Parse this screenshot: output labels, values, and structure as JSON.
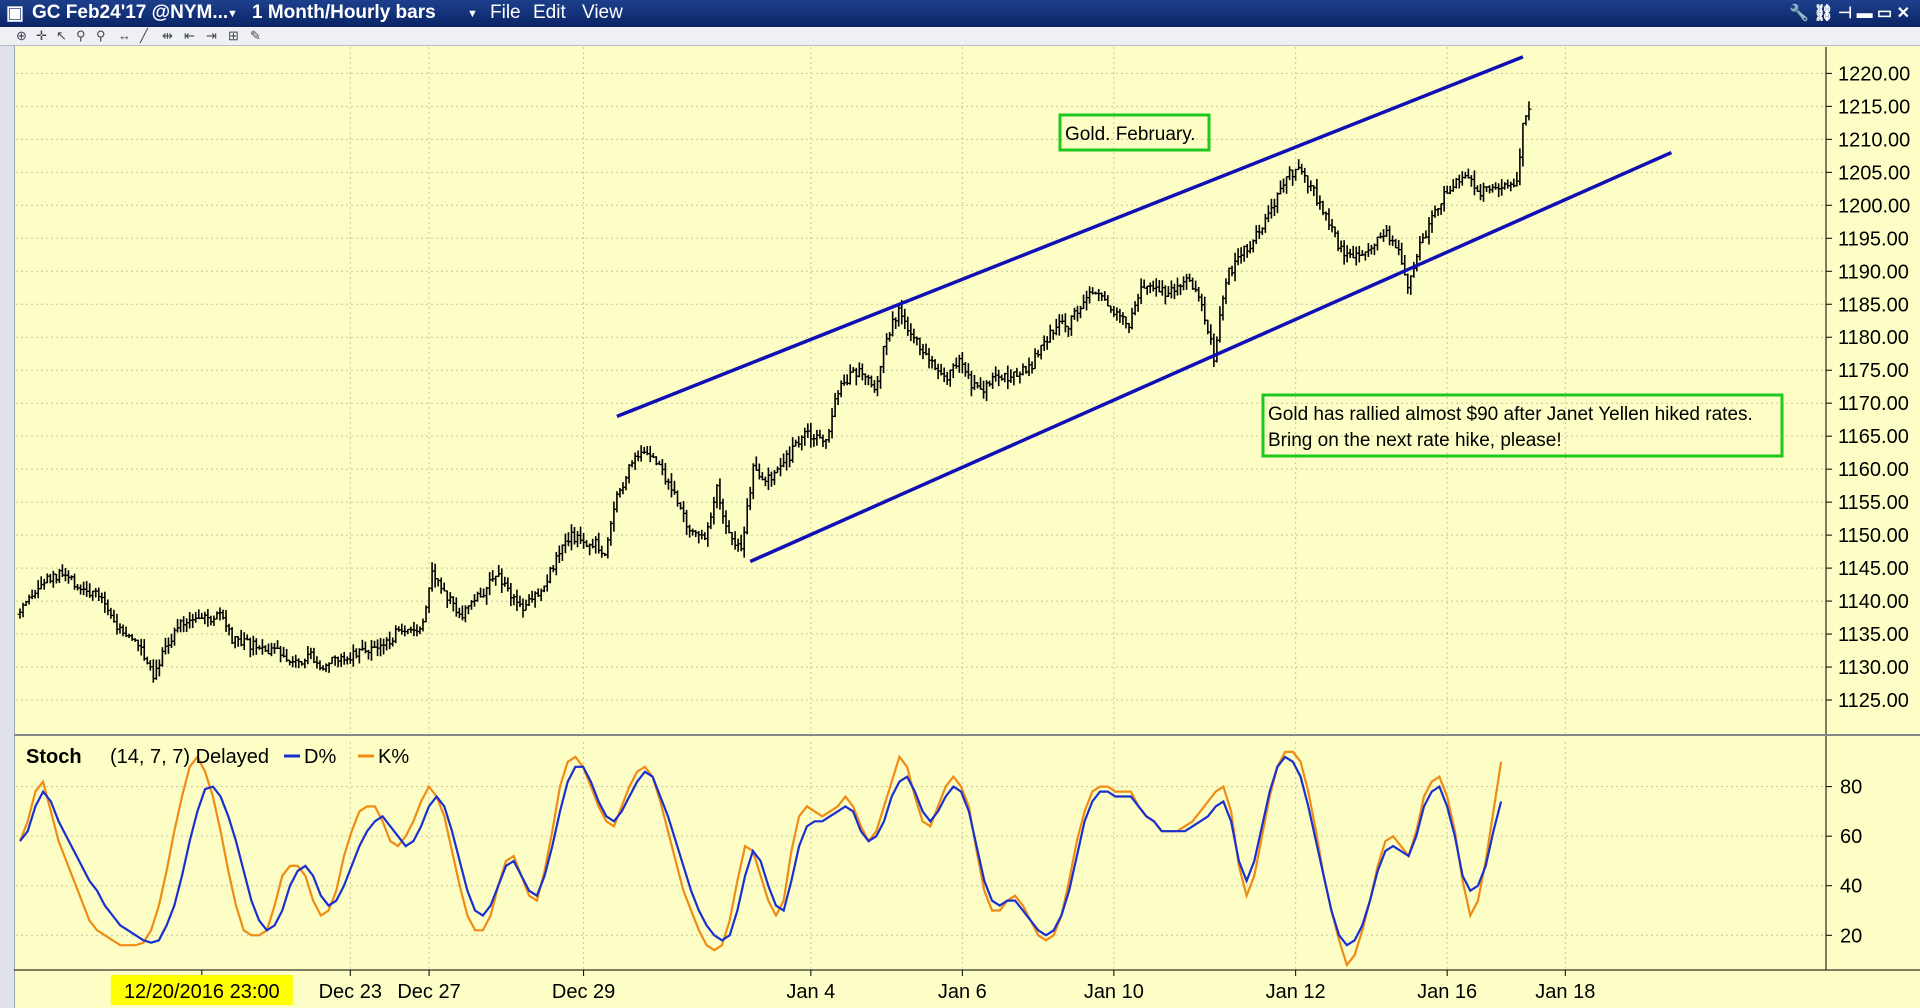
{
  "titlebar": {
    "symbol": "GC Feb24'17 @NYM...",
    "period": "1 Month/Hourly bars",
    "menu_file": "File",
    "menu_edit": "Edit",
    "menu_view": "View"
  },
  "colors": {
    "background": "#fdfdc6",
    "titlebar": "#123078",
    "channel": "#1010b4",
    "d_line": "#1a2fd0",
    "k_line": "#f08c14",
    "annotation_border": "#1ec81e",
    "date_highlight": "#ffff00"
  },
  "icons": [
    "tools-icon",
    "link-icon",
    "pin-icon",
    "minimize-icon",
    "maximize-icon",
    "close-icon"
  ],
  "chart_data": [
    {
      "type": "candlestick",
      "subtype": "ohlc-bars",
      "title": "",
      "annotations": [
        "Gold. February.",
        "Gold has rallied almost $90 after Janet Yellen hiked rates.",
        "Bring on the next rate hike, please!"
      ],
      "ylim": [
        1120,
        1224
      ],
      "y_ticks": [
        "1220.00",
        "1215.00",
        "1210.00",
        "1205.00",
        "1200.00",
        "1195.00",
        "1190.00",
        "1185.00",
        "1180.00",
        "1175.00",
        "1170.00",
        "1165.00",
        "1160.00",
        "1155.00",
        "1150.00",
        "1145.00",
        "1140.00",
        "1135.00",
        "1130.00",
        "1125.00"
      ],
      "x_ticks": [
        "Dec 23",
        "Dec 27",
        "Dec 29",
        "Jan 4",
        "Jan 6",
        "Jan 10",
        "Jan 12",
        "Jan 16",
        "Jan 18"
      ],
      "x_ticks_idx": [
        109,
        135,
        186,
        261,
        311,
        361,
        421,
        471,
        510
      ],
      "cursor_label": "12/20/2016 23:00",
      "cursor_idx": 60,
      "price_path": [
        [
          0,
          1138
        ],
        [
          8,
          1143
        ],
        [
          14,
          1144
        ],
        [
          20,
          1142
        ],
        [
          28,
          1140
        ],
        [
          32,
          1136
        ],
        [
          40,
          1133
        ],
        [
          44,
          1129
        ],
        [
          48,
          1133
        ],
        [
          52,
          1136
        ],
        [
          58,
          1138
        ],
        [
          62,
          1137
        ],
        [
          66,
          1138
        ],
        [
          70,
          1134
        ],
        [
          78,
          1133
        ],
        [
          86,
          1132
        ],
        [
          92,
          1131
        ],
        [
          96,
          1132
        ],
        [
          100,
          1130
        ],
        [
          104,
          1131
        ],
        [
          110,
          1132
        ],
        [
          116,
          1133
        ],
        [
          120,
          1133
        ],
        [
          124,
          1135
        ],
        [
          130,
          1135
        ],
        [
          133,
          1137
        ],
        [
          136,
          1145
        ],
        [
          140,
          1141
        ],
        [
          146,
          1138
        ],
        [
          152,
          1141
        ],
        [
          158,
          1144
        ],
        [
          162,
          1141
        ],
        [
          166,
          1139
        ],
        [
          172,
          1142
        ],
        [
          178,
          1147
        ],
        [
          182,
          1150
        ],
        [
          186,
          1149
        ],
        [
          190,
          1149
        ],
        [
          193,
          1147
        ],
        [
          197,
          1156
        ],
        [
          202,
          1161
        ],
        [
          206,
          1163
        ],
        [
          210,
          1161
        ],
        [
          214,
          1158
        ],
        [
          218,
          1154
        ],
        [
          222,
          1150
        ],
        [
          226,
          1150
        ],
        [
          230,
          1157
        ],
        [
          234,
          1150
        ],
        [
          238,
          1148
        ],
        [
          242,
          1160
        ],
        [
          246,
          1158
        ],
        [
          250,
          1160
        ],
        [
          254,
          1162
        ],
        [
          258,
          1165
        ],
        [
          262,
          1165
        ],
        [
          266,
          1164
        ],
        [
          270,
          1172
        ],
        [
          274,
          1174
        ],
        [
          278,
          1175
        ],
        [
          282,
          1172
        ],
        [
          286,
          1180
        ],
        [
          290,
          1184
        ],
        [
          294,
          1180
        ],
        [
          298,
          1178
        ],
        [
          302,
          1176
        ],
        [
          306,
          1174
        ],
        [
          310,
          1177
        ],
        [
          314,
          1173
        ],
        [
          318,
          1172
        ],
        [
          322,
          1174
        ],
        [
          326,
          1174
        ],
        [
          330,
          1175
        ],
        [
          334,
          1176
        ],
        [
          338,
          1179
        ],
        [
          342,
          1182
        ],
        [
          346,
          1182
        ],
        [
          350,
          1185
        ],
        [
          354,
          1187
        ],
        [
          358,
          1185
        ],
        [
          362,
          1184
        ],
        [
          366,
          1182
        ],
        [
          370,
          1188
        ],
        [
          374,
          1187
        ],
        [
          378,
          1187
        ],
        [
          382,
          1188
        ],
        [
          386,
          1189
        ],
        [
          390,
          1185
        ],
        [
          394,
          1177
        ],
        [
          398,
          1189
        ],
        [
          402,
          1192
        ],
        [
          406,
          1194
        ],
        [
          410,
          1197
        ],
        [
          414,
          1200
        ],
        [
          418,
          1205
        ],
        [
          422,
          1205
        ],
        [
          426,
          1203
        ],
        [
          430,
          1199
        ],
        [
          434,
          1195
        ],
        [
          438,
          1192
        ],
        [
          442,
          1193
        ],
        [
          446,
          1194
        ],
        [
          450,
          1196
        ],
        [
          454,
          1194
        ],
        [
          458,
          1188
        ],
        [
          462,
          1194
        ],
        [
          466,
          1198
        ],
        [
          470,
          1202
        ],
        [
          474,
          1204
        ],
        [
          478,
          1204
        ],
        [
          482,
          1202
        ],
        [
          486,
          1202
        ],
        [
          490,
          1203
        ],
        [
          494,
          1204
        ],
        [
          496,
          1212
        ],
        [
          498,
          1214
        ]
      ],
      "n_bars": 500,
      "channel_upper": [
        {
          "x": 197,
          "y": 1168
        },
        {
          "x": 496,
          "y": 1222.5
        }
      ],
      "channel_lower": [
        {
          "x": 241,
          "y": 1146
        },
        {
          "x": 545,
          "y": 1208
        }
      ]
    },
    {
      "type": "line",
      "title": "Stoch",
      "params": "(14, 7, 7) Delayed",
      "ylim": [
        6,
        98
      ],
      "y_ticks": [
        "80",
        "60",
        "40",
        "20"
      ],
      "series": [
        {
          "name": "D%",
          "key": "d",
          "values": [
            58,
            62,
            72,
            78,
            74,
            66,
            60,
            54,
            48,
            42,
            38,
            32,
            28,
            24,
            22,
            20,
            18,
            17,
            18,
            24,
            32,
            44,
            58,
            70,
            79,
            80,
            76,
            68,
            58,
            46,
            34,
            26,
            22,
            24,
            30,
            40,
            46,
            48,
            44,
            36,
            32,
            34,
            40,
            48,
            56,
            62,
            66,
            68,
            64,
            60,
            56,
            58,
            64,
            72,
            76,
            72,
            62,
            50,
            38,
            30,
            28,
            32,
            40,
            48,
            50,
            44,
            38,
            36,
            44,
            56,
            70,
            82,
            88,
            88,
            82,
            74,
            68,
            66,
            70,
            76,
            82,
            86,
            84,
            76,
            68,
            58,
            48,
            38,
            30,
            24,
            20,
            18,
            20,
            30,
            44,
            54,
            50,
            40,
            32,
            30,
            42,
            56,
            64,
            66,
            66,
            68,
            70,
            72,
            70,
            62,
            58,
            60,
            66,
            76,
            82,
            84,
            78,
            70,
            66,
            70,
            76,
            80,
            78,
            70,
            56,
            42,
            34,
            32,
            34,
            34,
            30,
            26,
            22,
            20,
            22,
            28,
            38,
            52,
            66,
            74,
            78,
            78,
            76,
            76,
            76,
            72,
            68,
            66,
            62,
            62,
            62,
            62,
            64,
            66,
            68,
            72,
            74,
            66,
            50,
            42,
            50,
            64,
            78,
            88,
            92,
            90,
            84,
            72,
            58,
            44,
            30,
            20,
            16,
            18,
            24,
            34,
            46,
            54,
            56,
            54,
            52,
            60,
            72,
            78,
            80,
            72,
            60,
            44,
            38,
            40,
            48,
            62,
            74
          ]
        },
        {
          "name": "K%",
          "key": "k",
          "values": [
            58,
            66,
            78,
            82,
            70,
            58,
            50,
            42,
            34,
            26,
            22,
            20,
            18,
            16,
            16,
            16,
            17,
            22,
            32,
            46,
            62,
            76,
            88,
            92,
            86,
            76,
            62,
            46,
            32,
            22,
            20,
            20,
            22,
            32,
            44,
            48,
            48,
            44,
            34,
            28,
            30,
            38,
            52,
            62,
            70,
            72,
            72,
            66,
            58,
            56,
            60,
            66,
            74,
            80,
            76,
            68,
            54,
            40,
            28,
            22,
            22,
            28,
            40,
            50,
            52,
            44,
            36,
            34,
            46,
            62,
            80,
            90,
            92,
            88,
            80,
            72,
            66,
            64,
            72,
            80,
            86,
            88,
            84,
            74,
            62,
            50,
            38,
            30,
            22,
            16,
            14,
            16,
            26,
            42,
            56,
            54,
            44,
            34,
            28,
            34,
            54,
            68,
            72,
            70,
            68,
            70,
            72,
            76,
            72,
            64,
            58,
            62,
            72,
            82,
            92,
            88,
            76,
            66,
            64,
            72,
            80,
            84,
            80,
            72,
            54,
            38,
            30,
            30,
            34,
            36,
            32,
            26,
            20,
            18,
            20,
            28,
            42,
            58,
            70,
            78,
            80,
            80,
            78,
            78,
            78,
            72,
            68,
            66,
            62,
            62,
            62,
            64,
            66,
            70,
            74,
            78,
            80,
            70,
            48,
            36,
            44,
            60,
            76,
            88,
            94,
            94,
            90,
            78,
            62,
            44,
            30,
            18,
            8,
            12,
            22,
            34,
            48,
            58,
            60,
            56,
            52,
            62,
            76,
            82,
            84,
            76,
            62,
            42,
            28,
            34,
            50,
            70,
            90
          ]
        }
      ]
    }
  ]
}
